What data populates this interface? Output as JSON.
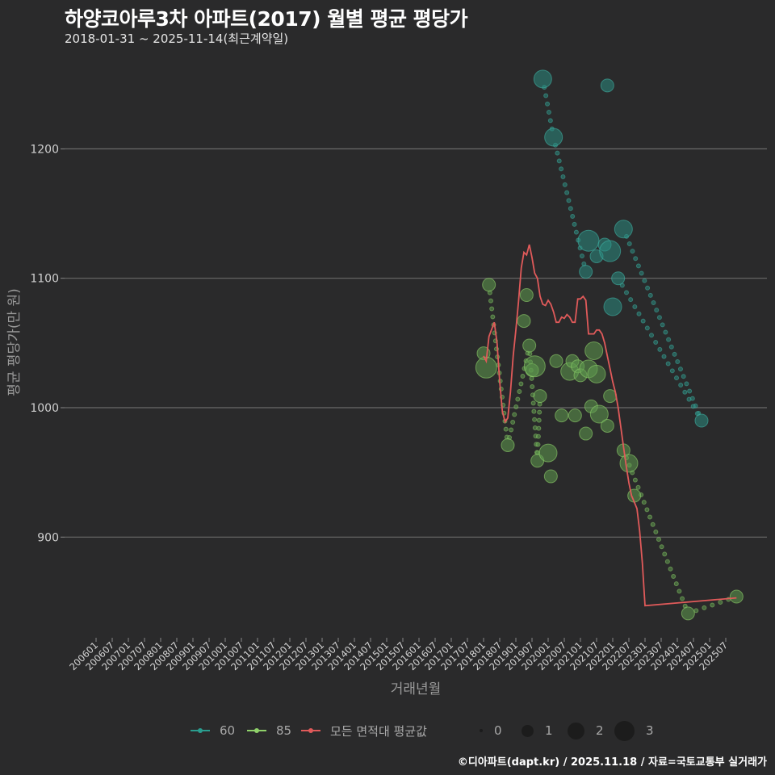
{
  "header": {
    "title": "하양코아루3차 아파트(2017) 월별 평균 평당가",
    "subtitle": "2018-01-31 ~ 2025-11-14(최근계약일)"
  },
  "footer": {
    "credit": "©디아파트(dapt.kr) / 2025.11.18 / 자료=국토교통부 실거래가"
  },
  "legend": {
    "series": [
      {
        "label": "60",
        "color": "#2a9d8f"
      },
      {
        "label": "85",
        "color": "#8fd16a"
      },
      {
        "label": "모든 면적대 평균값",
        "color": "#e05a5a"
      }
    ],
    "sizes": [
      {
        "label": "0",
        "size": 4
      },
      {
        "label": "1",
        "size": 16
      },
      {
        "label": "2",
        "size": 22
      },
      {
        "label": "3",
        "size": 26
      }
    ]
  },
  "chart_data": {
    "type": "scatter",
    "title": "하양코아루3차 아파트(2017) 월별 평균 평당가",
    "subtitle": "2018-01-31 ~ 2025-11-14(최근계약일)",
    "xlabel": "거래년월",
    "ylabel": "평균 평당가(만 원)",
    "x_ticks": [
      "200601",
      "200607",
      "200701",
      "200707",
      "200801",
      "200807",
      "200901",
      "200907",
      "201001",
      "201007",
      "201101",
      "201107",
      "201201",
      "201207",
      "201301",
      "201307",
      "201401",
      "201407",
      "201501",
      "201507",
      "201601",
      "201607",
      "201701",
      "201707",
      "201801",
      "201807",
      "201901",
      "201907",
      "202001",
      "202007",
      "202101",
      "202107",
      "202201",
      "202207",
      "202301",
      "202307",
      "202401",
      "202407",
      "202501",
      "202507"
    ],
    "y_ticks": [
      900,
      1000,
      1100,
      1200
    ],
    "ylim": [
      820,
      1260
    ],
    "grid": "horizontal",
    "legend_position": "bottom",
    "series": [
      {
        "name": "60",
        "color": "#2a9d8f",
        "points": [
          {
            "x": "201911",
            "y": 1254,
            "n": 2
          },
          {
            "x": "202003",
            "y": 1209,
            "n": 2
          },
          {
            "x": "202103",
            "y": 1105,
            "n": 1
          },
          {
            "x": "202104",
            "y": 1129,
            "n": 3
          },
          {
            "x": "202107",
            "y": 1117,
            "n": 1
          },
          {
            "x": "202110",
            "y": 1126,
            "n": 1
          },
          {
            "x": "202111",
            "y": 1249,
            "n": 1
          },
          {
            "x": "202112",
            "y": 1121,
            "n": 3
          },
          {
            "x": "202201",
            "y": 1078,
            "n": 2
          },
          {
            "x": "202203",
            "y": 1100,
            "n": 1
          },
          {
            "x": "202205",
            "y": 1138,
            "n": 2
          },
          {
            "x": "202410",
            "y": 990,
            "n": 1
          }
        ]
      },
      {
        "name": "85",
        "color": "#8fd16a",
        "points": [
          {
            "x": "201801",
            "y": 1042,
            "n": 1
          },
          {
            "x": "201802",
            "y": 1031,
            "n": 3
          },
          {
            "x": "201803",
            "y": 1095,
            "n": 1
          },
          {
            "x": "201810",
            "y": 971,
            "n": 1
          },
          {
            "x": "201904",
            "y": 1067,
            "n": 1
          },
          {
            "x": "201905",
            "y": 1087,
            "n": 1
          },
          {
            "x": "201906",
            "y": 1048,
            "n": 1
          },
          {
            "x": "201907",
            "y": 1029,
            "n": 1
          },
          {
            "x": "201908",
            "y": 1032,
            "n": 3
          },
          {
            "x": "201909",
            "y": 959,
            "n": 1
          },
          {
            "x": "201910",
            "y": 1009,
            "n": 1
          },
          {
            "x": "202001",
            "y": 965,
            "n": 2
          },
          {
            "x": "202002",
            "y": 947,
            "n": 1
          },
          {
            "x": "202004",
            "y": 1036,
            "n": 1
          },
          {
            "x": "202006",
            "y": 994,
            "n": 1
          },
          {
            "x": "202009",
            "y": 1028,
            "n": 2
          },
          {
            "x": "202010",
            "y": 1036,
            "n": 1
          },
          {
            "x": "202011",
            "y": 994,
            "n": 1
          },
          {
            "x": "202012",
            "y": 1032,
            "n": 1
          },
          {
            "x": "202101",
            "y": 1025,
            "n": 1
          },
          {
            "x": "202103",
            "y": 980,
            "n": 1
          },
          {
            "x": "202104",
            "y": 1030,
            "n": 2
          },
          {
            "x": "202105",
            "y": 1001,
            "n": 1
          },
          {
            "x": "202106",
            "y": 1044,
            "n": 2
          },
          {
            "x": "202107",
            "y": 1026,
            "n": 2
          },
          {
            "x": "202108",
            "y": 995,
            "n": 2
          },
          {
            "x": "202111",
            "y": 986,
            "n": 1
          },
          {
            "x": "202112",
            "y": 1009,
            "n": 1
          },
          {
            "x": "202205",
            "y": 967,
            "n": 1
          },
          {
            "x": "202207",
            "y": 957,
            "n": 2
          },
          {
            "x": "202209",
            "y": 932,
            "n": 1
          },
          {
            "x": "202405",
            "y": 841,
            "n": 1
          },
          {
            "x": "202511",
            "y": 854,
            "n": 1
          }
        ]
      },
      {
        "name": "모든 면적대 평균값",
        "color": "#e05a5a",
        "type": "line",
        "points": [
          [
            "201801",
            1040
          ],
          [
            "201802",
            1036
          ],
          [
            "201803",
            1055
          ],
          [
            "201805",
            1066
          ],
          [
            "201806",
            1050
          ],
          [
            "201807",
            1020
          ],
          [
            "201808",
            997
          ],
          [
            "201809",
            989
          ],
          [
            "201810",
            992
          ],
          [
            "201811",
            1012
          ],
          [
            "201812",
            1040
          ],
          [
            "201901",
            1060
          ],
          [
            "201902",
            1082
          ],
          [
            "201903",
            1108
          ],
          [
            "201904",
            1120
          ],
          [
            "201905",
            1118
          ],
          [
            "201906",
            1126
          ],
          [
            "201907",
            1116
          ],
          [
            "201908",
            1104
          ],
          [
            "201909",
            1100
          ],
          [
            "201910",
            1086
          ],
          [
            "201911",
            1080
          ],
          [
            "201912",
            1079
          ],
          [
            "202001",
            1083
          ],
          [
            "202002",
            1080
          ],
          [
            "202003",
            1074
          ],
          [
            "202004",
            1066
          ],
          [
            "202005",
            1066
          ],
          [
            "202006",
            1070
          ],
          [
            "202007",
            1069
          ],
          [
            "202008",
            1072
          ],
          [
            "202009",
            1070
          ],
          [
            "202010",
            1066
          ],
          [
            "202011",
            1066
          ],
          [
            "202012",
            1084
          ],
          [
            "202101",
            1084
          ],
          [
            "202102",
            1086
          ],
          [
            "202103",
            1083
          ],
          [
            "202104",
            1057
          ],
          [
            "202105",
            1057
          ],
          [
            "202106",
            1057
          ],
          [
            "202107",
            1060
          ],
          [
            "202108",
            1060
          ],
          [
            "202109",
            1057
          ],
          [
            "202110",
            1050
          ],
          [
            "202111",
            1040
          ],
          [
            "202112",
            1030
          ],
          [
            "202201",
            1020
          ],
          [
            "202202",
            1012
          ],
          [
            "202203",
            1000
          ],
          [
            "202204",
            985
          ],
          [
            "202205",
            970
          ],
          [
            "202206",
            955
          ],
          [
            "202207",
            942
          ],
          [
            "202208",
            932
          ],
          [
            "202209",
            927
          ],
          [
            "202210",
            922
          ],
          [
            "202211",
            905
          ],
          [
            "202212",
            880
          ],
          [
            "202301",
            847
          ],
          [
            "202511",
            853
          ]
        ]
      }
    ]
  }
}
